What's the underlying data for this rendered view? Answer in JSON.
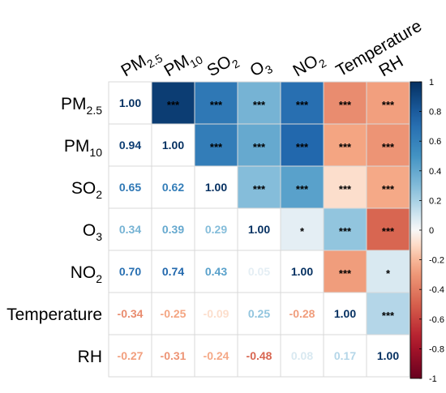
{
  "chart_data": {
    "type": "heatmap",
    "variables": [
      {
        "name": "PM2.5",
        "base": "PM",
        "sub": "2.5"
      },
      {
        "name": "PM10",
        "base": "PM",
        "sub": "10"
      },
      {
        "name": "SO2",
        "base": "SO",
        "sub": "2"
      },
      {
        "name": "O3",
        "base": "O",
        "sub": "3"
      },
      {
        "name": "NO2",
        "base": "NO",
        "sub": "2"
      },
      {
        "name": "Temperature",
        "base": "Temperature",
        "sub": ""
      },
      {
        "name": "RH",
        "base": "RH",
        "sub": ""
      }
    ],
    "matrix": [
      [
        1.0,
        0.94,
        0.65,
        0.34,
        0.7,
        -0.34,
        -0.27
      ],
      [
        0.94,
        1.0,
        0.62,
        0.39,
        0.74,
        -0.25,
        -0.31
      ],
      [
        0.65,
        0.62,
        1.0,
        0.29,
        0.43,
        -0.09,
        -0.24
      ],
      [
        0.34,
        0.39,
        0.29,
        1.0,
        0.05,
        0.25,
        -0.48
      ],
      [
        0.7,
        0.74,
        0.43,
        0.05,
        1.0,
        -0.28,
        0.08
      ],
      [
        -0.34,
        -0.25,
        -0.09,
        0.25,
        -0.28,
        1.0,
        0.17
      ],
      [
        -0.27,
        -0.31,
        -0.24,
        -0.48,
        0.08,
        0.17,
        1.0
      ]
    ],
    "significance": [
      [
        "",
        "***",
        "***",
        "***",
        "***",
        "***",
        "***"
      ],
      [
        "",
        "",
        "***",
        "***",
        "***",
        "***",
        "***"
      ],
      [
        "",
        "",
        "",
        "***",
        "***",
        "***",
        "***"
      ],
      [
        "",
        "",
        "",
        "",
        "*",
        "***",
        "***"
      ],
      [
        "",
        "",
        "",
        "",
        "",
        "***",
        "*"
      ],
      [
        "",
        "",
        "",
        "",
        "",
        "",
        "***"
      ],
      [
        "",
        "",
        "",
        "",
        "",
        "",
        ""
      ]
    ],
    "lower_triangle": "coefficients",
    "upper_triangle": "significance stars",
    "colorbar": {
      "range": [
        -1,
        1
      ],
      "ticks": [
        "1",
        "0.8",
        "0.6",
        "0.4",
        "0.2",
        "0",
        "-0.2",
        "-0.4",
        "-0.6",
        "-0.8",
        "-1"
      ]
    },
    "colors": {
      "negative_end": "#67001f",
      "mid": "#f7f7f7",
      "positive_end": "#053061",
      "grid": "#d9d9d9"
    }
  }
}
